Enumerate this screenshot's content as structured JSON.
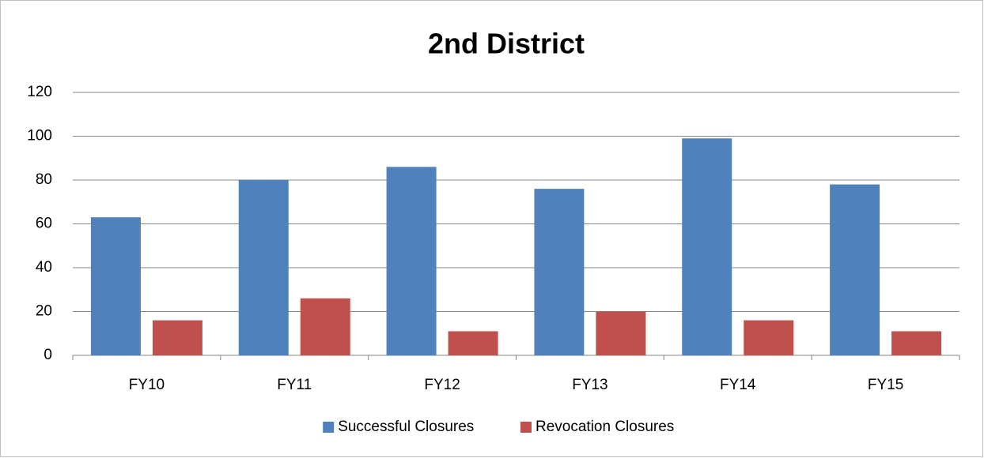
{
  "chart_data": {
    "type": "bar",
    "title": "2nd District",
    "categories": [
      "FY10",
      "FY11",
      "FY12",
      "FY13",
      "FY14",
      "FY15"
    ],
    "series": [
      {
        "name": "Successful Closures",
        "color": "#4f81bd",
        "values": [
          63,
          80,
          86,
          76,
          99,
          78
        ]
      },
      {
        "name": "Revocation Closures",
        "color": "#c0504d",
        "values": [
          16,
          26,
          11,
          20,
          16,
          11
        ]
      }
    ],
    "ylim": [
      0,
      120
    ],
    "yticks": [
      0,
      20,
      40,
      60,
      80,
      100,
      120
    ],
    "grid": true,
    "legend": "bottom"
  }
}
